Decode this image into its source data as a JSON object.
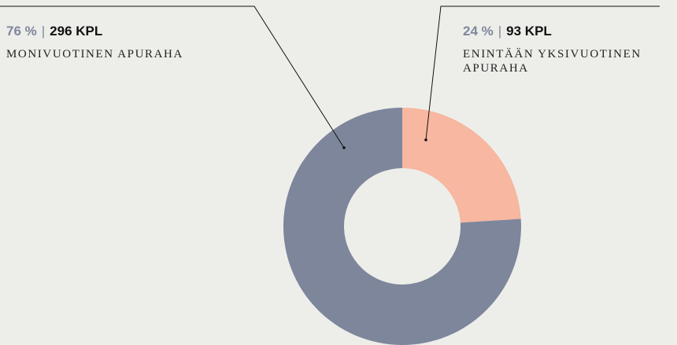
{
  "chart_data": {
    "type": "donut",
    "categories": [
      "ENINTÄÄN YKSIVUOTINEN APURAHA",
      "MONIVUOTINEN APURAHA"
    ],
    "values": [
      24,
      76
    ],
    "value_labels": [
      "24 %",
      "76 %"
    ],
    "counts": [
      93,
      296
    ],
    "count_labels": [
      "93 KPL",
      "296 KPL"
    ],
    "colors": [
      "#f7b7a0",
      "#7e869c"
    ]
  }
}
